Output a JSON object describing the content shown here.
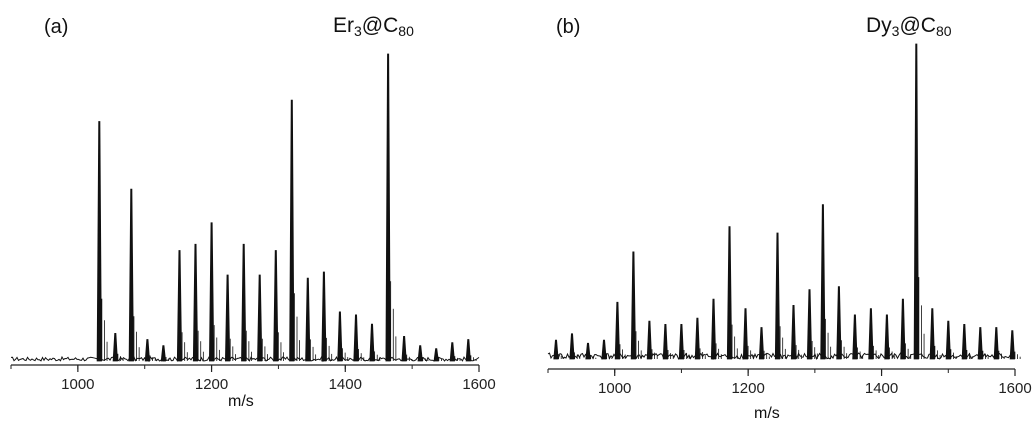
{
  "chart_data": [
    {
      "type": "line",
      "panel_label": "(a)",
      "compound": {
        "base": "Er",
        "sub1": "3",
        "mid": "@C",
        "sub2": "80"
      },
      "xlabel": "m/s",
      "xlim": [
        900,
        1600
      ],
      "xticks": [
        1000,
        1200,
        1400,
        1600
      ],
      "ylim": [
        0,
        1
      ],
      "y_axis_shown": false,
      "line_color": "#111111",
      "peaks": [
        [
          1032,
          0.78
        ],
        [
          1056,
          0.09
        ],
        [
          1080,
          0.56
        ],
        [
          1104,
          0.07
        ],
        [
          1128,
          0.05
        ],
        [
          1152,
          0.36
        ],
        [
          1176,
          0.38
        ],
        [
          1200,
          0.45
        ],
        [
          1224,
          0.28
        ],
        [
          1248,
          0.38
        ],
        [
          1272,
          0.28
        ],
        [
          1296,
          0.36
        ],
        [
          1320,
          0.85
        ],
        [
          1344,
          0.27
        ],
        [
          1368,
          0.29
        ],
        [
          1392,
          0.16
        ],
        [
          1416,
          0.15
        ],
        [
          1440,
          0.12
        ],
        [
          1464,
          1.0
        ],
        [
          1488,
          0.08
        ],
        [
          1512,
          0.05
        ],
        [
          1536,
          0.04
        ],
        [
          1560,
          0.06
        ],
        [
          1584,
          0.07
        ]
      ]
    },
    {
      "type": "line",
      "panel_label": "(b)",
      "compound": {
        "base": "Dy",
        "sub1": "3",
        "mid": "@C",
        "sub2": "80"
      },
      "xlabel": "m/s",
      "xlim": [
        900,
        1600
      ],
      "xticks": [
        1000,
        1200,
        1400,
        1600
      ],
      "ylim": [
        0,
        1
      ],
      "y_axis_shown": false,
      "line_color": "#111111",
      "peaks": [
        [
          912,
          0.06
        ],
        [
          936,
          0.08
        ],
        [
          960,
          0.05
        ],
        [
          984,
          0.06
        ],
        [
          1004,
          0.18
        ],
        [
          1028,
          0.34
        ],
        [
          1052,
          0.12
        ],
        [
          1076,
          0.11
        ],
        [
          1100,
          0.11
        ],
        [
          1124,
          0.13
        ],
        [
          1148,
          0.19
        ],
        [
          1172,
          0.42
        ],
        [
          1196,
          0.16
        ],
        [
          1220,
          0.1
        ],
        [
          1244,
          0.4
        ],
        [
          1268,
          0.17
        ],
        [
          1292,
          0.22
        ],
        [
          1312,
          0.49
        ],
        [
          1336,
          0.23
        ],
        [
          1360,
          0.14
        ],
        [
          1384,
          0.16
        ],
        [
          1408,
          0.14
        ],
        [
          1432,
          0.19
        ],
        [
          1452,
          1.0
        ],
        [
          1476,
          0.16
        ],
        [
          1500,
          0.12
        ],
        [
          1524,
          0.11
        ],
        [
          1548,
          0.1
        ],
        [
          1572,
          0.1
        ],
        [
          1596,
          0.09
        ]
      ]
    }
  ]
}
